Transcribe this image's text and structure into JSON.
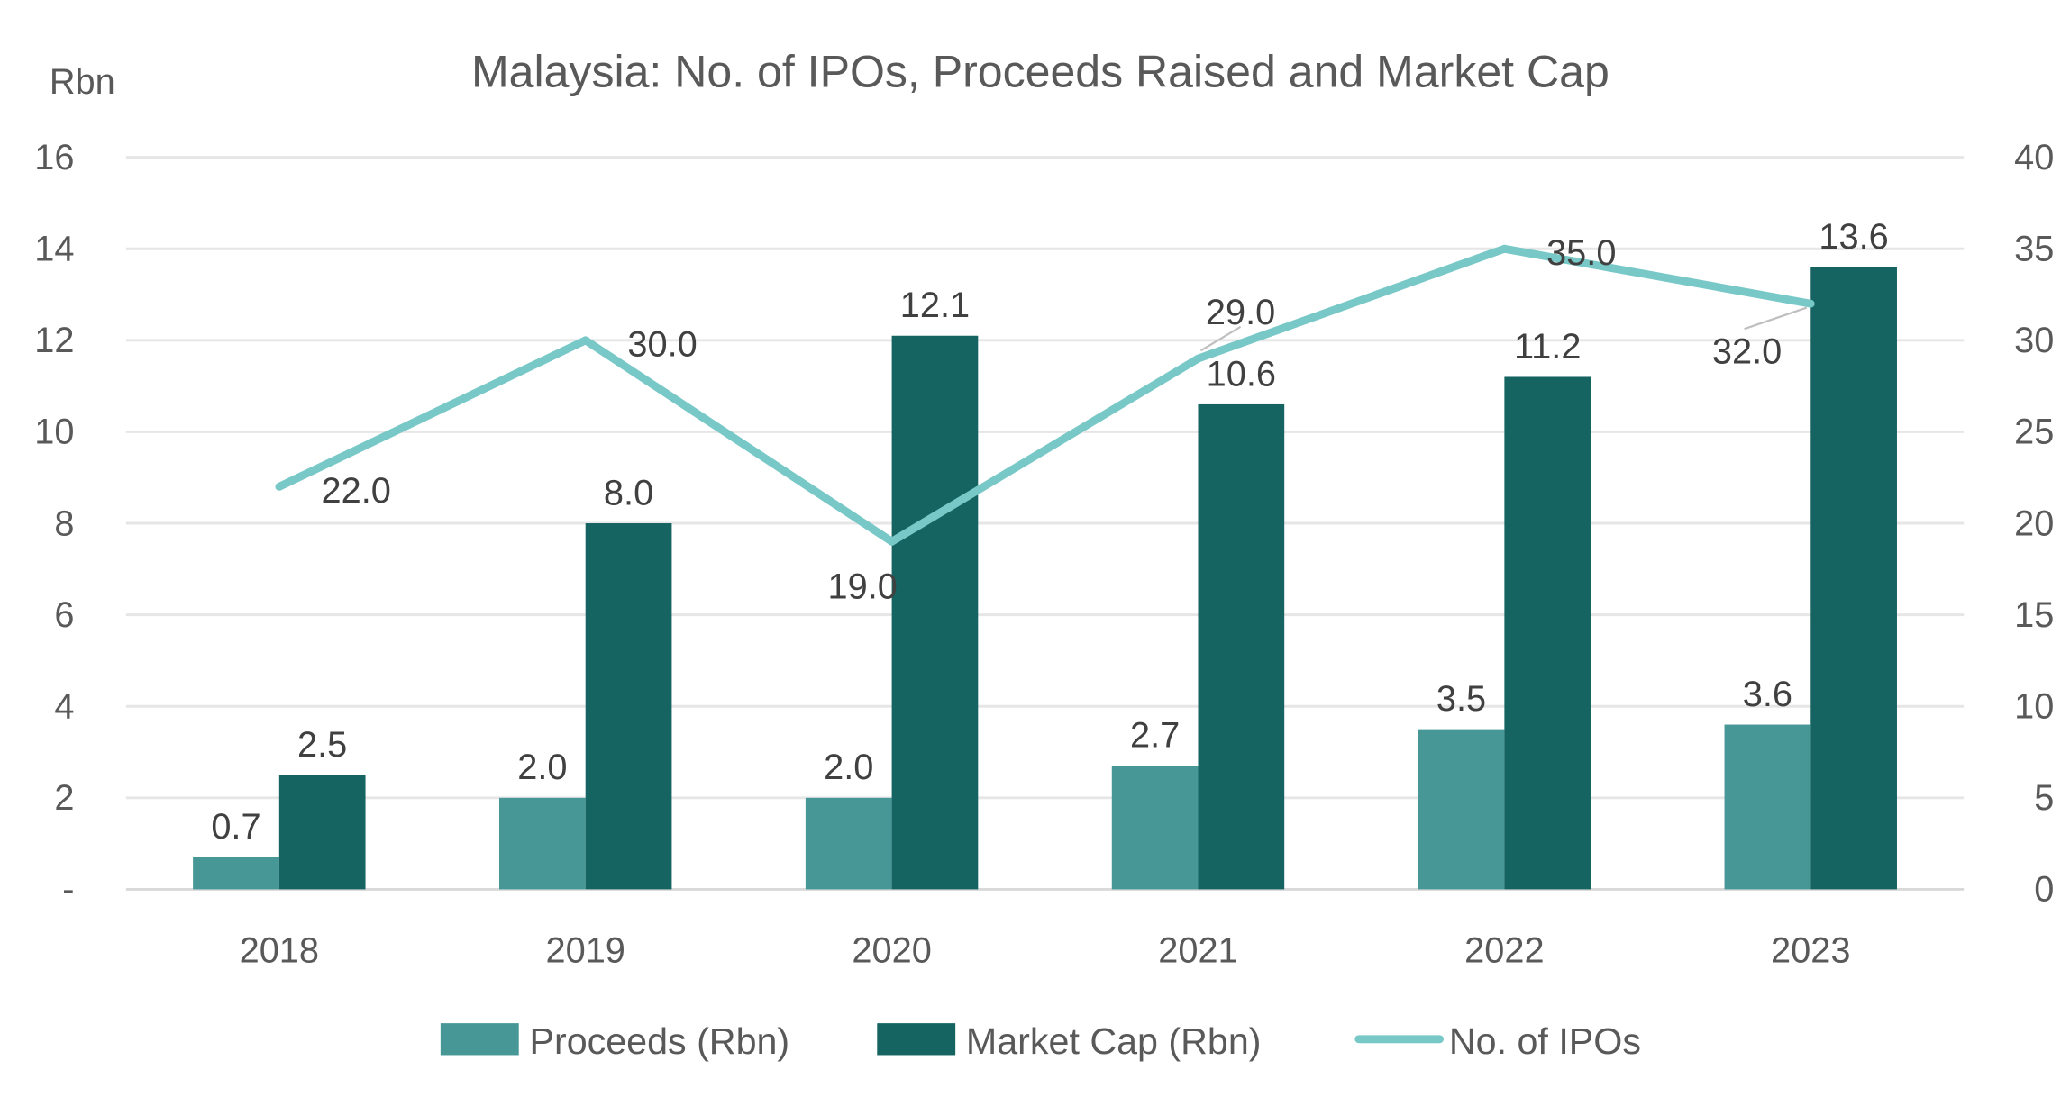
{
  "chart_data": {
    "type": "bar+line",
    "title": "Malaysia: No. of IPOs, Proceeds Raised and Market Cap",
    "ylabel_left": "Rbn",
    "categories": [
      "2018",
      "2019",
      "2020",
      "2021",
      "2022",
      "2023"
    ],
    "y_left": {
      "range": [
        0,
        16
      ],
      "ticks": [
        "-",
        "2",
        "4",
        "6",
        "8",
        "10",
        "12",
        "14",
        "16"
      ]
    },
    "y_right": {
      "range": [
        0,
        40
      ],
      "ticks": [
        "0",
        "5",
        "10",
        "15",
        "20",
        "25",
        "30",
        "35",
        "40"
      ]
    },
    "grid": true,
    "legend_position": "bottom",
    "series": [
      {
        "name": "Proceeds (Rbn)",
        "type": "bar",
        "axis": "left",
        "color": "#479797",
        "values": [
          0.7,
          2.0,
          2.0,
          2.7,
          3.5,
          3.6
        ],
        "labels": [
          "0.7",
          "2.0",
          "2.0",
          "2.7",
          "3.5",
          "3.6"
        ]
      },
      {
        "name": "Market Cap (Rbn)",
        "type": "bar",
        "axis": "left",
        "color": "#156461",
        "values": [
          2.5,
          8.0,
          12.1,
          10.6,
          11.2,
          13.6
        ],
        "labels": [
          "2.5",
          "8.0",
          "12.1",
          "10.6",
          "11.2",
          "13.6"
        ]
      },
      {
        "name": "No. of IPOs",
        "type": "line",
        "axis": "right",
        "color": "#78C8C8",
        "values": [
          22,
          30,
          19,
          29,
          35,
          32
        ],
        "labels": [
          "22.0",
          "30.0",
          "19.0",
          "29.0",
          "35.0",
          "32.0"
        ]
      }
    ]
  }
}
